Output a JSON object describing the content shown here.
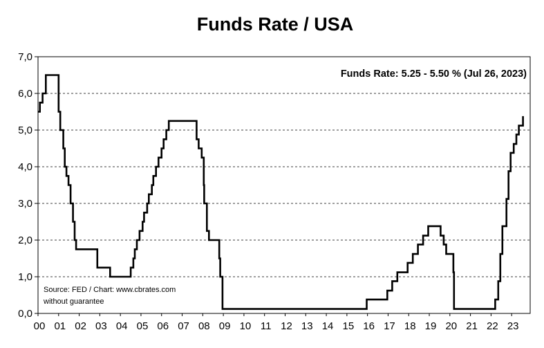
{
  "chart_data": {
    "type": "line",
    "title": "Funds Rate / USA",
    "annotation": "Funds Rate: 5.25 - 5.50 % (Jul 26, 2023)",
    "source_line1": "Source: FED / Chart: www.cbrates.com",
    "source_line2": "without guarantee",
    "xlabel": "",
    "ylabel": "",
    "ylim": [
      0,
      7
    ],
    "xlim": [
      2000.0,
      2023.9
    ],
    "grid": "horizontal dashed",
    "y_ticks": [
      "0,0",
      "1,0",
      "2,0",
      "3,0",
      "4,0",
      "5,0",
      "6,0",
      "7,0"
    ],
    "x_ticks": [
      "00",
      "01",
      "02",
      "03",
      "04",
      "05",
      "06",
      "07",
      "08",
      "09",
      "10",
      "11",
      "12",
      "13",
      "14",
      "15",
      "16",
      "17",
      "18",
      "19",
      "20",
      "21",
      "22",
      "23"
    ],
    "line_color": "#000000",
    "series": [
      {
        "name": "Funds Rate",
        "x": [
          2000.0,
          2000.09,
          2000.22,
          2000.38,
          2001.0,
          2001.08,
          2001.23,
          2001.3,
          2001.38,
          2001.48,
          2001.58,
          2001.7,
          2001.78,
          2001.85,
          2001.93,
          2002.88,
          2003.5,
          2004.5,
          2004.63,
          2004.7,
          2004.8,
          2004.93,
          2005.08,
          2005.15,
          2005.3,
          2005.38,
          2005.53,
          2005.6,
          2005.73,
          2005.85,
          2006.0,
          2006.1,
          2006.23,
          2006.35,
          2006.5,
          2007.7,
          2007.8,
          2007.95,
          2008.05,
          2008.07,
          2008.2,
          2008.3,
          2008.8,
          2008.85,
          2008.96,
          2015.96,
          2016.96,
          2017.2,
          2017.45,
          2017.95,
          2018.2,
          2018.45,
          2018.7,
          2018.95,
          2019.55,
          2019.7,
          2019.82,
          2020.17,
          2020.2,
          2021.98,
          2022.2,
          2022.35,
          2022.45,
          2022.55,
          2022.75,
          2022.85,
          2022.95,
          2023.1,
          2023.23,
          2023.35,
          2023.55
        ],
        "values": [
          5.5,
          5.75,
          6.0,
          6.5,
          5.5,
          5.0,
          4.5,
          4.0,
          3.75,
          3.5,
          3.0,
          2.5,
          2.0,
          1.75,
          1.75,
          1.25,
          1.0,
          1.25,
          1.5,
          1.75,
          2.0,
          2.25,
          2.5,
          2.75,
          3.0,
          3.25,
          3.5,
          3.75,
          4.0,
          4.25,
          4.5,
          4.75,
          5.0,
          5.25,
          5.25,
          4.75,
          4.5,
          4.25,
          3.5,
          3.0,
          2.25,
          2.0,
          1.5,
          1.0,
          0.12,
          0.38,
          0.62,
          0.88,
          1.12,
          1.38,
          1.62,
          1.88,
          2.12,
          2.38,
          2.12,
          1.88,
          1.62,
          1.12,
          0.12,
          0.12,
          0.38,
          0.88,
          1.62,
          2.38,
          3.12,
          3.88,
          4.38,
          4.62,
          4.88,
          5.12,
          5.38
        ]
      }
    ]
  }
}
